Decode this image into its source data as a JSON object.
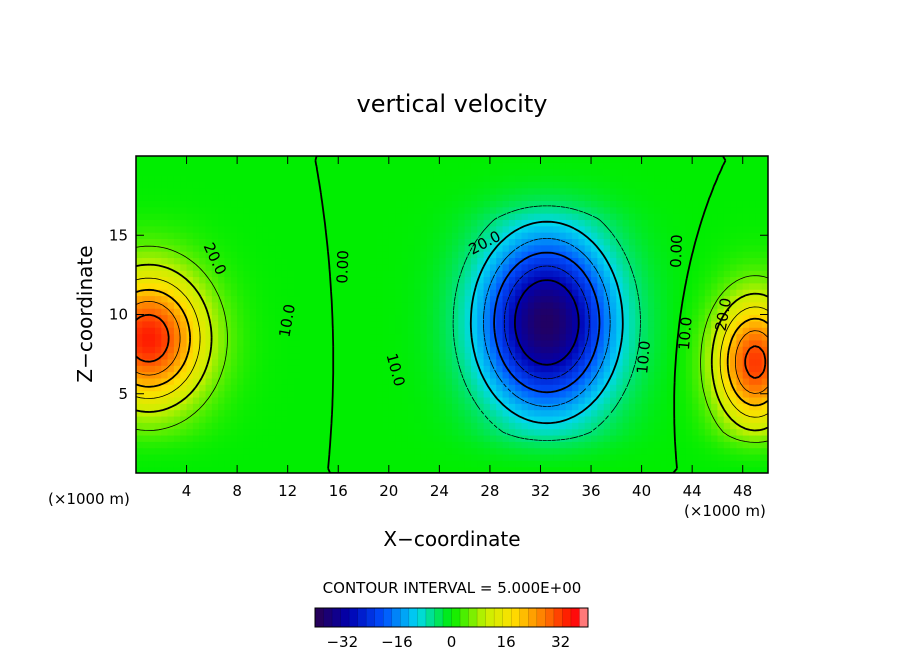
{
  "chart_data": {
    "type": "heatmap",
    "title": "vertical velocity",
    "xlabel": "X−coordinate",
    "ylabel": "Z−coordinate",
    "x_unit_left": "(×1000 m)",
    "x_unit_right": "(×1000 m)",
    "xlim": [
      0,
      50
    ],
    "ylim": [
      0,
      20
    ],
    "x_ticks": [
      4,
      8,
      12,
      16,
      20,
      24,
      28,
      32,
      36,
      40,
      44,
      48
    ],
    "y_ticks": [
      5,
      10,
      15
    ],
    "contour_interval_label": "CONTOUR INTERVAL = 5.000E+00",
    "colorbar": {
      "range": [
        -40,
        40
      ],
      "ticks": [
        -32,
        -16,
        0,
        16,
        32
      ],
      "tick_labels": [
        "−32",
        "−16",
        "0",
        "16",
        "32"
      ]
    },
    "contour_labels": [
      {
        "text": "20.0",
        "x": 6.2,
        "y": 13.5,
        "rotate": 65
      },
      {
        "text": "10.0",
        "x": 12.0,
        "y": 9.6,
        "rotate": -80
      },
      {
        "text": "0.00",
        "x": 16.4,
        "y": 13.0,
        "rotate": -88
      },
      {
        "text": "20.0",
        "x": 27.6,
        "y": 14.5,
        "rotate": -28
      },
      {
        "text": "10.0",
        "x": 20.5,
        "y": 6.5,
        "rotate": 75
      },
      {
        "text": "10.0",
        "x": 40.2,
        "y": 7.3,
        "rotate": -85
      },
      {
        "text": "0.00",
        "x": 42.8,
        "y": 14.0,
        "rotate": -88
      },
      {
        "text": "10.0",
        "x": 43.5,
        "y": 8.8,
        "rotate": -85
      },
      {
        "text": "20.0",
        "x": 46.5,
        "y": 10.0,
        "rotate": -80
      }
    ],
    "features": [
      {
        "name": "updraft-left",
        "x": 1.0,
        "z": 8.5,
        "amp": 34,
        "sx": 4.5,
        "sz": 4.2
      },
      {
        "name": "downdraft-center",
        "x": 32.5,
        "z": 9.5,
        "amp": -38,
        "sx": 5.2,
        "sz": 5.5
      },
      {
        "name": "updraft-right",
        "x": 49.0,
        "z": 7.0,
        "amp": 32,
        "sx": 3.2,
        "sz": 4.0
      }
    ]
  }
}
